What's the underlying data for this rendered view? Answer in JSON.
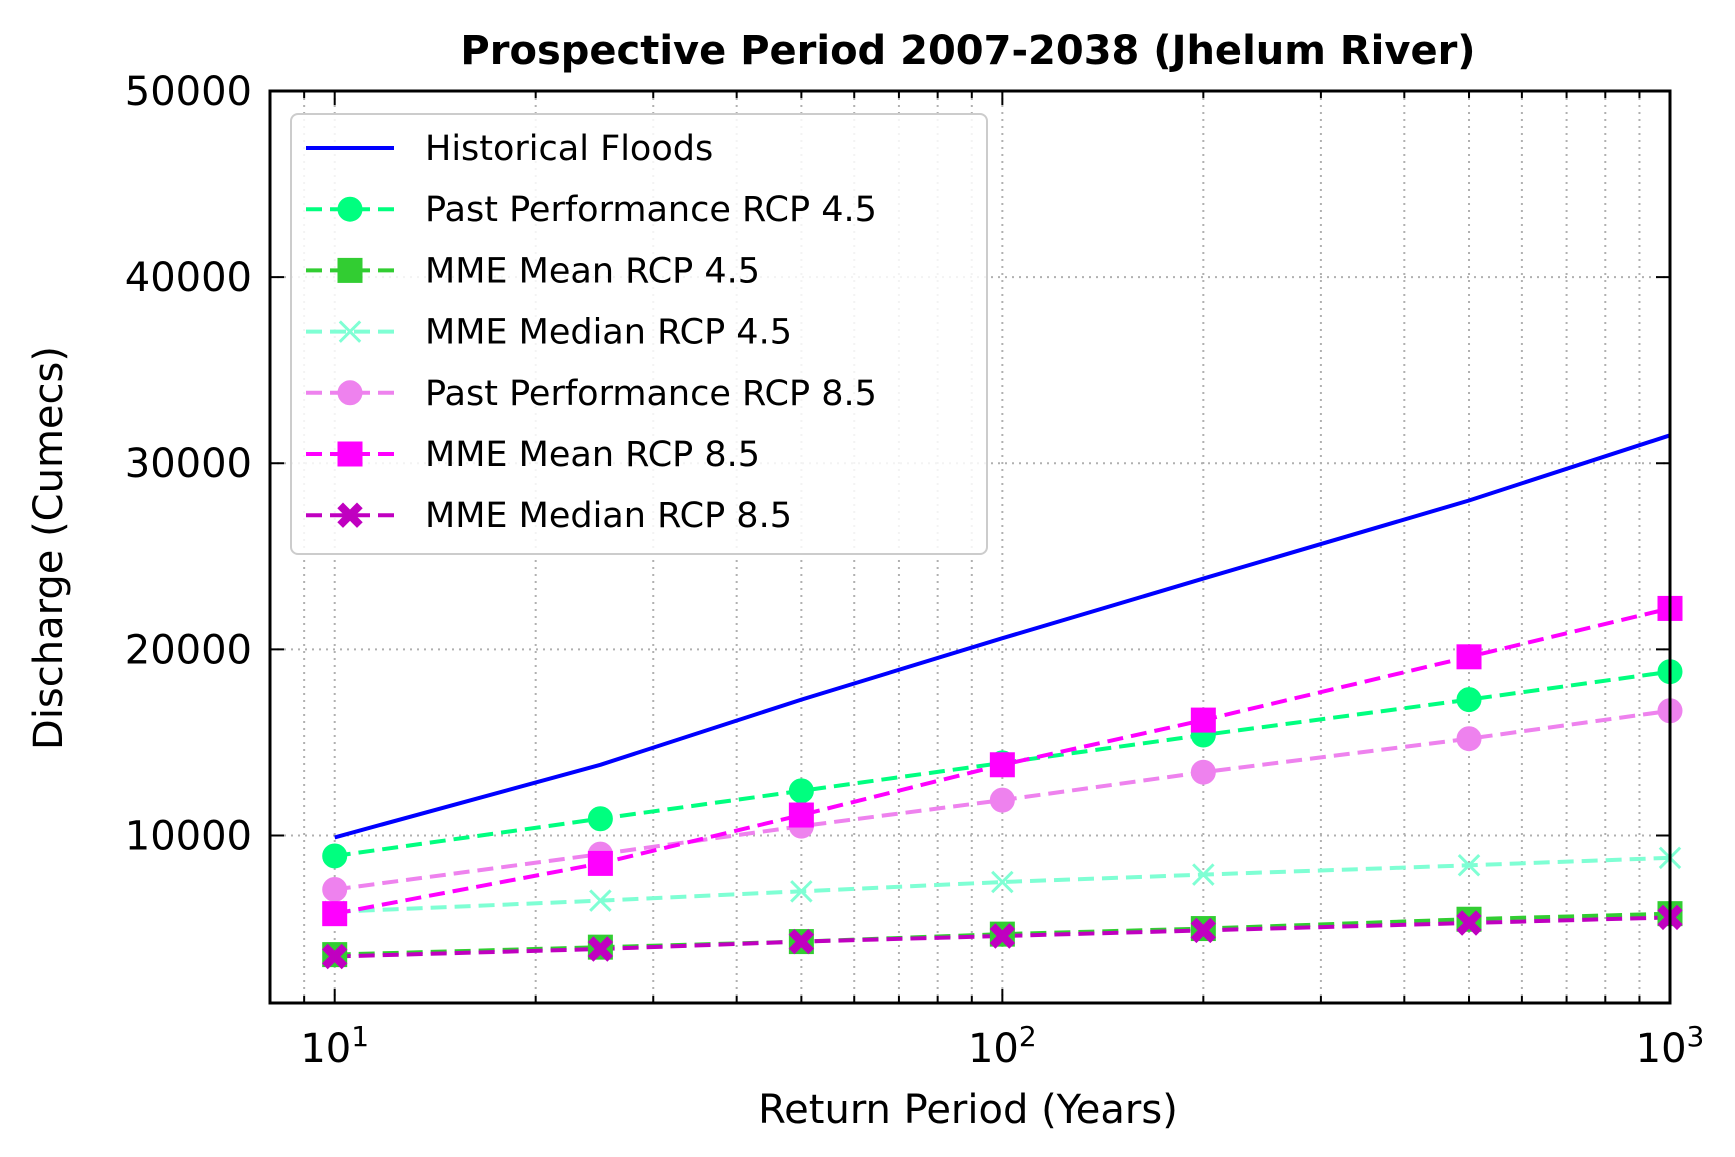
{
  "chart_data": {
    "type": "line",
    "title": "Prospective Period 2007-2038 (Jhelum River)",
    "xlabel": "Return Period (Years)",
    "ylabel": "Discharge (Cumecs)",
    "xscale": "log",
    "xlim": [
      8,
      1000
    ],
    "ylim": [
      1000,
      50000
    ],
    "x_ticks": [
      {
        "value": 10,
        "base": "10",
        "exp": "1"
      },
      {
        "value": 100,
        "base": "10",
        "exp": "2"
      },
      {
        "value": 1000,
        "base": "10",
        "exp": "3"
      }
    ],
    "y_ticks": [
      {
        "value": 10000,
        "label": "10000"
      },
      {
        "value": 20000,
        "label": "20000"
      },
      {
        "value": 30000,
        "label": "30000"
      },
      {
        "value": 40000,
        "label": "40000"
      },
      {
        "value": 50000,
        "label": "50000"
      }
    ],
    "grid": true,
    "legend_position": "upper-left",
    "x": [
      10,
      25,
      50,
      100,
      200,
      500,
      1000
    ],
    "series": [
      {
        "name": "Historical Floods",
        "color": "#0000ff",
        "dash": "solid",
        "marker": "none",
        "values": [
          9900,
          13800,
          17300,
          20600,
          23800,
          28000,
          31500
        ]
      },
      {
        "name": "Past Performance RCP 4.5",
        "color": "#00ff7f",
        "dash": "dashed",
        "marker": "circle",
        "values": [
          8900,
          10900,
          12400,
          13900,
          15400,
          17300,
          18800
        ]
      },
      {
        "name": "MME Mean RCP 4.5",
        "color": "#32cd32",
        "dash": "dashed",
        "marker": "square",
        "values": [
          3600,
          4000,
          4300,
          4700,
          5000,
          5500,
          5800
        ]
      },
      {
        "name": "MME Median RCP 4.5",
        "color": "#7fffd4",
        "dash": "dashed",
        "marker": "x",
        "values": [
          5900,
          6500,
          7000,
          7500,
          7900,
          8400,
          8800
        ]
      },
      {
        "name": "Past Performance RCP 8.5",
        "color": "#ee82ee",
        "dash": "dashed",
        "marker": "circle",
        "values": [
          7100,
          9000,
          10500,
          11900,
          13400,
          15200,
          16700
        ]
      },
      {
        "name": "MME Mean RCP 8.5",
        "color": "#ff00ff",
        "dash": "dashed",
        "marker": "square",
        "values": [
          5800,
          8500,
          11100,
          13800,
          16200,
          19600,
          22200
        ]
      },
      {
        "name": "MME Median RCP 8.5",
        "color": "#c000c0",
        "dash": "dashed",
        "marker": "X",
        "values": [
          3500,
          3900,
          4300,
          4600,
          4900,
          5300,
          5600
        ]
      }
    ]
  }
}
